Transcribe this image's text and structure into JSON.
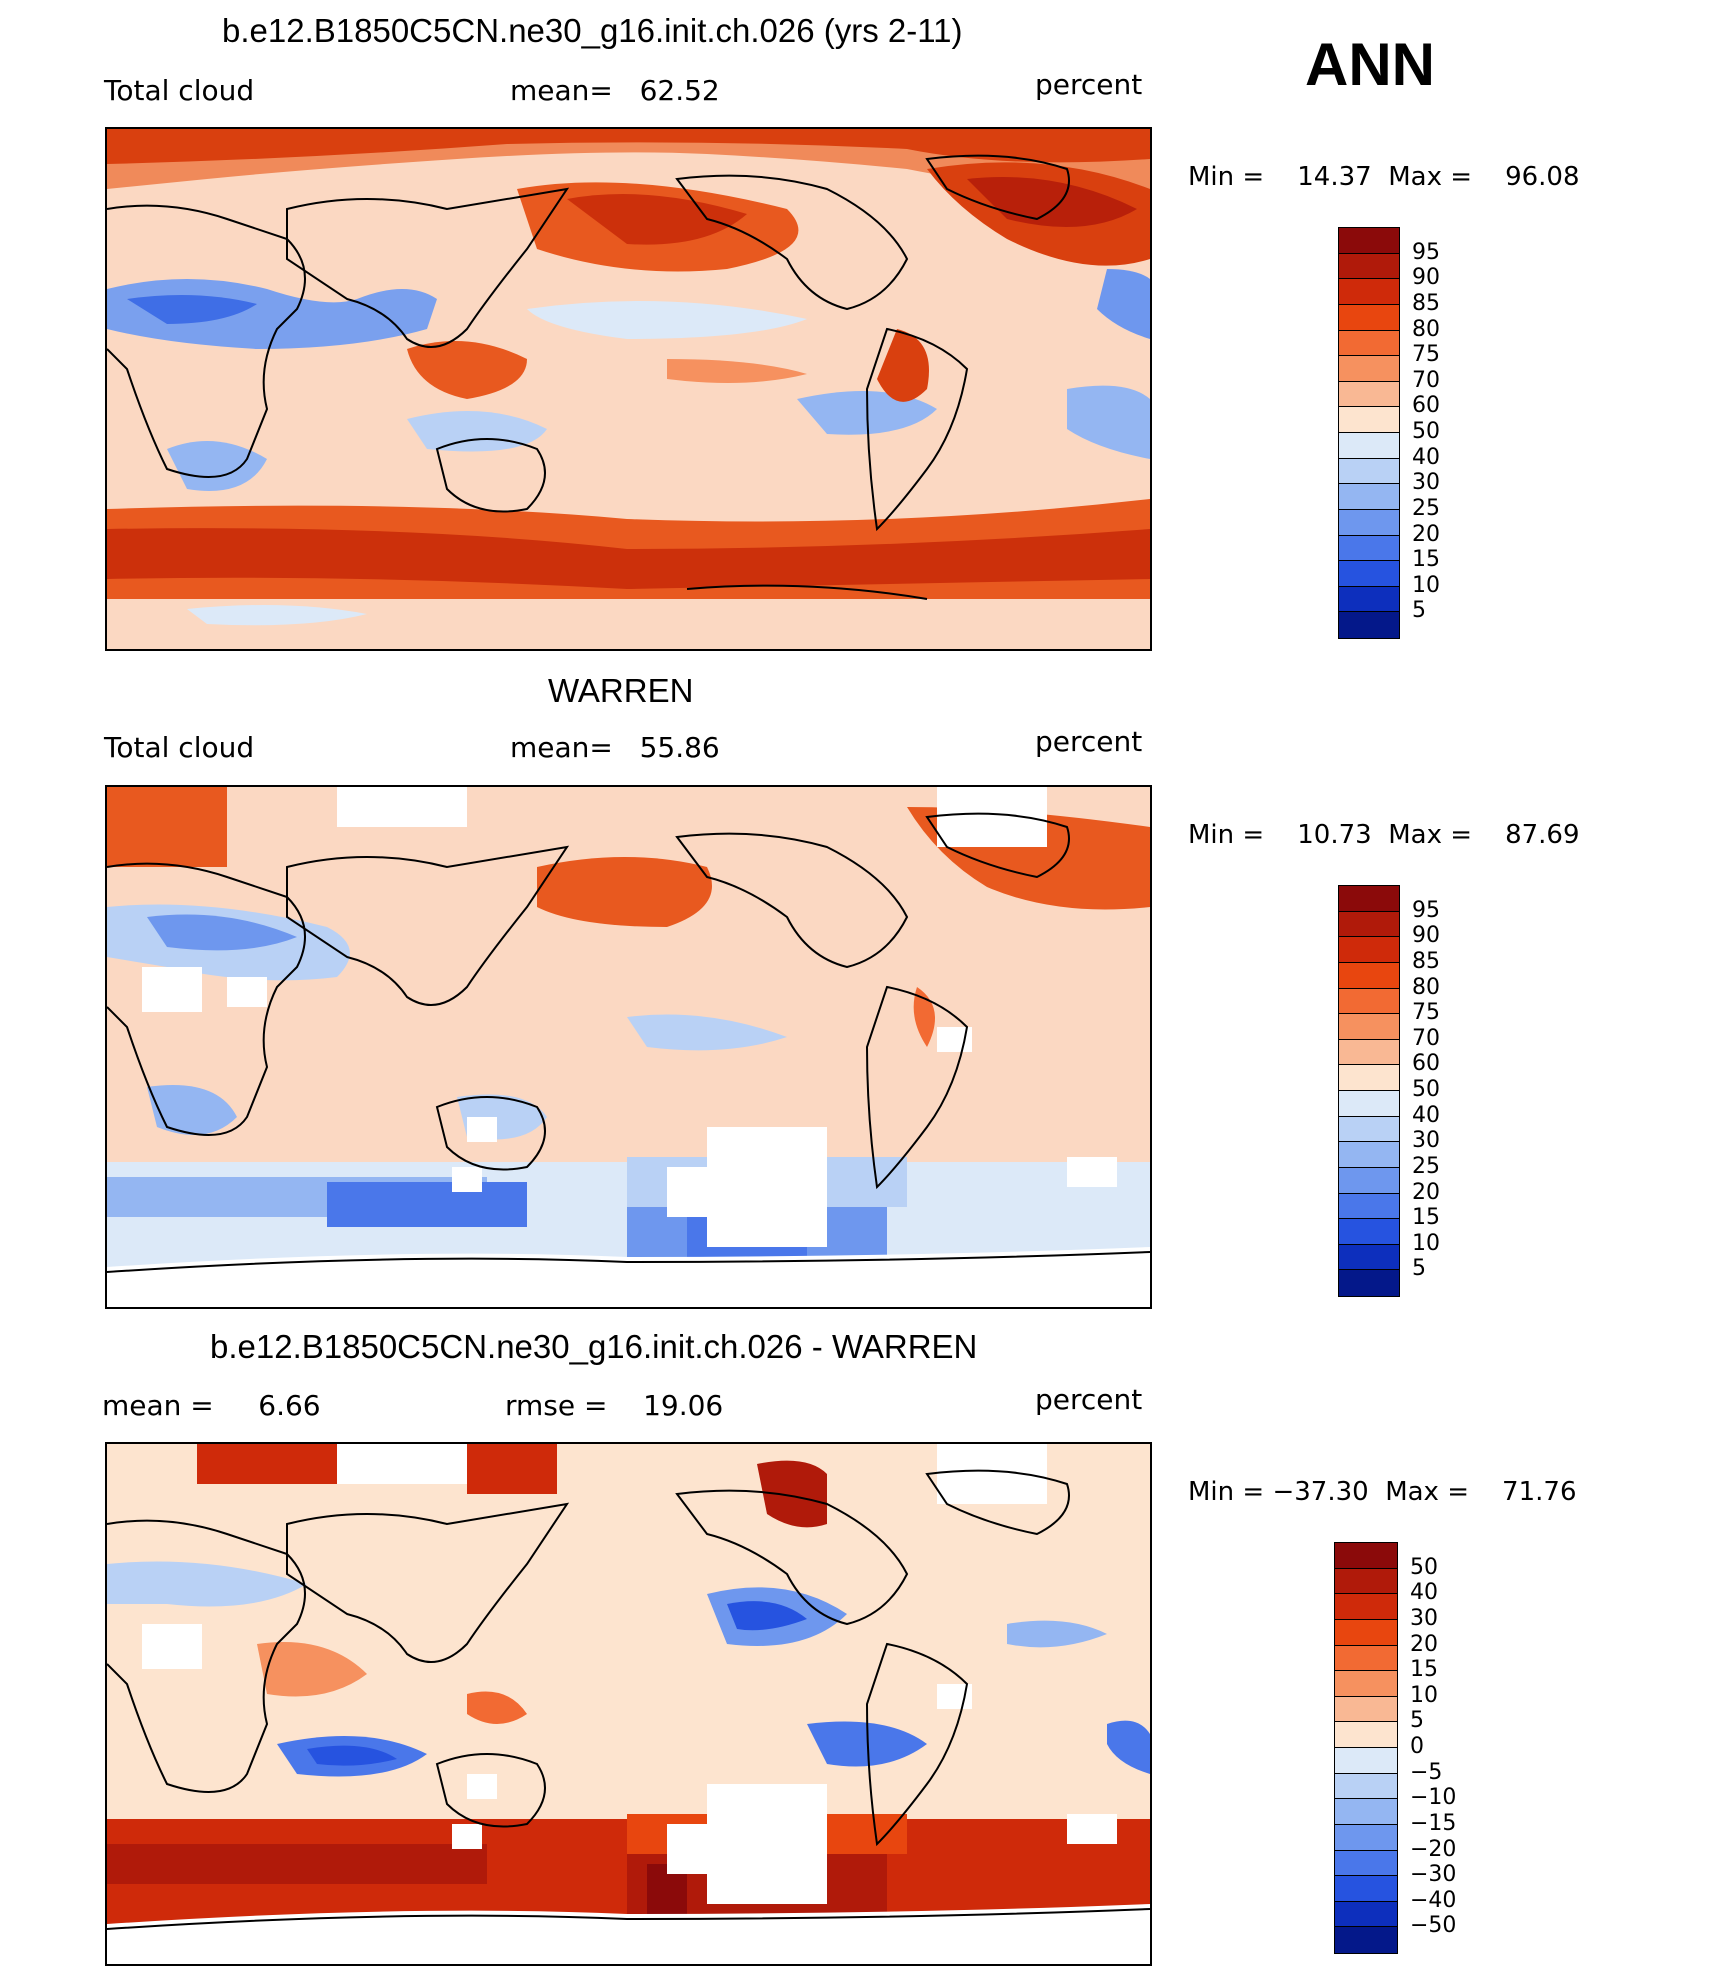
{
  "season": "ANN",
  "panels": [
    {
      "title": "b.e12.B1850C5CN.ne30_g16.init.ch.026 (yrs 2-11)",
      "left_label": "Total cloud",
      "center_label": "mean=   62.52",
      "right_label": "percent",
      "minmax": "Min =    14.37  Max =    96.08",
      "colorbar": {
        "labels": [
          "95",
          "90",
          "85",
          "80",
          "75",
          "70",
          "60",
          "50",
          "40",
          "30",
          "25",
          "20",
          "15",
          "10",
          "5"
        ],
        "colors": [
          "#8b0a0a",
          "#b01a0a",
          "#cf2a0a",
          "#e8460f",
          "#f26a33",
          "#f6915f",
          "#f9b894",
          "#fde4cf",
          "#dce9f8",
          "#b9d1f5",
          "#94b6f2",
          "#6e97ee",
          "#4a77ea",
          "#2653e0",
          "#0d2fbd",
          "#04188a"
        ]
      }
    },
    {
      "title": "WARREN",
      "left_label": "Total cloud",
      "center_label": "mean=   55.86",
      "right_label": "percent",
      "minmax": "Min =    10.73  Max =    87.69",
      "colorbar": {
        "labels": [
          "95",
          "90",
          "85",
          "80",
          "75",
          "70",
          "60",
          "50",
          "40",
          "30",
          "25",
          "20",
          "15",
          "10",
          "5"
        ],
        "colors": [
          "#8b0a0a",
          "#b01a0a",
          "#cf2a0a",
          "#e8460f",
          "#f26a33",
          "#f6915f",
          "#f9b894",
          "#fde4cf",
          "#dce9f8",
          "#b9d1f5",
          "#94b6f2",
          "#6e97ee",
          "#4a77ea",
          "#2653e0",
          "#0d2fbd",
          "#04188a"
        ]
      }
    },
    {
      "title": "b.e12.B1850C5CN.ne30_g16.init.ch.026 - WARREN",
      "left_label": "mean =     6.66",
      "center_label": "rmse =    19.06",
      "right_label": "percent",
      "minmax": "Min = −37.30  Max =    71.76",
      "colorbar": {
        "labels": [
          "50",
          "40",
          "30",
          "20",
          "15",
          "10",
          "5",
          "0",
          "−5",
          "−10",
          "−15",
          "−20",
          "−30",
          "−40",
          "−50"
        ],
        "colors": [
          "#8b0a0a",
          "#b01a0a",
          "#cf2a0a",
          "#e8460f",
          "#f26a33",
          "#f6915f",
          "#f9b894",
          "#fde4cf",
          "#dce9f8",
          "#b9d1f5",
          "#94b6f2",
          "#6e97ee",
          "#4a77ea",
          "#2653e0",
          "#0d2fbd",
          "#04188a"
        ]
      }
    }
  ]
}
